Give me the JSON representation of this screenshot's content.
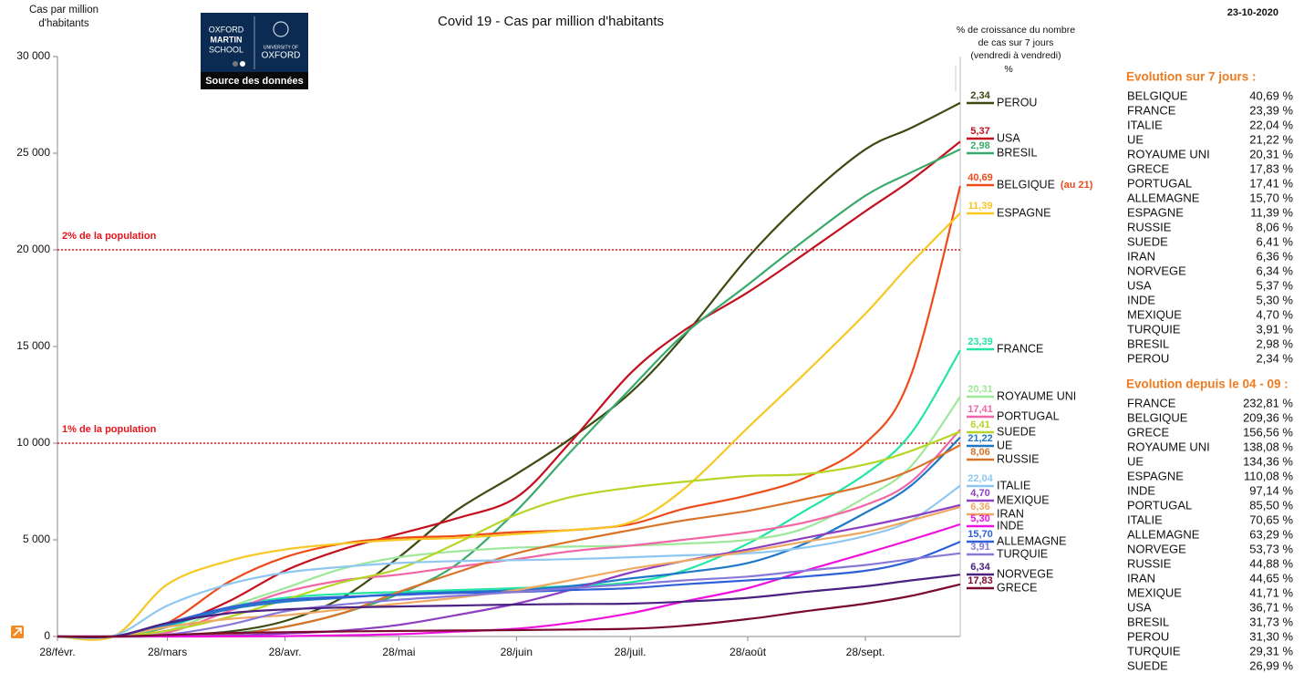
{
  "chart_data": {
    "type": "line",
    "title": "Covid 19 - Cas par million d'habitants",
    "date": "23-10-2020",
    "ylabel": [
      "Cas par million",
      "d'habitants"
    ],
    "growth_header": [
      "% de croissance du nombre",
      "de cas sur 7 jours",
      "(vendredi à vendredi)",
      "%"
    ],
    "logo": {
      "left": [
        "OXFORD",
        "MARTIN",
        "SCHOOL"
      ],
      "right": [
        "UNIVERSITY OF",
        "OXFORD"
      ],
      "link": "Source des données"
    },
    "x": [
      0,
      15,
      29,
      45,
      60,
      75,
      90,
      105,
      121,
      135,
      151,
      165,
      182,
      197,
      213,
      225,
      238
    ],
    "xlim": [
      0,
      238
    ],
    "xticks": [
      {
        "value": 0,
        "label": "28/févr."
      },
      {
        "value": 29,
        "label": "28/mars"
      },
      {
        "value": 60,
        "label": "28/avr."
      },
      {
        "value": 90,
        "label": "28/mai"
      },
      {
        "value": 121,
        "label": "28/juin"
      },
      {
        "value": 151,
        "label": "28/juil."
      },
      {
        "value": 182,
        "label": "28/août"
      },
      {
        "value": 213,
        "label": "28/sept."
      }
    ],
    "ylim": [
      0,
      30000
    ],
    "yticks": [
      0,
      {
        "value": 5000,
        "label": "5 000"
      },
      {
        "value": 10000,
        "label": "10 000"
      },
      {
        "value": 15000,
        "label": "15 000"
      },
      {
        "value": 20000,
        "label": "20 000"
      },
      {
        "value": 25000,
        "label": "25 000"
      },
      {
        "value": 30000,
        "label": "30 000"
      }
    ],
    "reference_lines": [
      {
        "value": 20000,
        "label": "2% de la population",
        "color": "#e8141c"
      },
      {
        "value": 10000,
        "label": "1% de la population",
        "color": "#e8141c"
      }
    ],
    "series": [
      {
        "name": "PEROU",
        "color": "#3d4a12",
        "growth_label": "2,34",
        "values": [
          0,
          10,
          80,
          250,
          800,
          2000,
          4100,
          6500,
          8400,
          10200,
          12600,
          15500,
          19600,
          22600,
          25200,
          26300,
          27600
        ]
      },
      {
        "name": "USA",
        "color": "#c4101e",
        "growth_label": "5,37",
        "values": [
          0,
          20,
          500,
          1800,
          3400,
          4500,
          5300,
          6100,
          7200,
          10000,
          13600,
          15800,
          17800,
          19800,
          22000,
          23600,
          25600
        ]
      },
      {
        "name": "BRESIL",
        "color": "#3aaa6c",
        "growth_label": "2,98",
        "values": [
          0,
          0,
          20,
          150,
          500,
          1200,
          2200,
          3700,
          6500,
          9500,
          12800,
          15600,
          18200,
          20500,
          22800,
          24000,
          25200
        ]
      },
      {
        "name": "BELGIQUE",
        "color": "#ee4b1a",
        "growth_label": "40,69",
        "note": "(au 21)",
        "values": [
          0,
          10,
          700,
          2800,
          4100,
          4800,
          5100,
          5200,
          5400,
          5500,
          5800,
          6600,
          7300,
          8200,
          10000,
          13500,
          23300
        ]
      },
      {
        "name": "ESPAGNE",
        "color": "#f7c824",
        "growth_label": "11,39",
        "values": [
          0,
          30,
          2700,
          3900,
          4500,
          4800,
          5000,
          5100,
          5300,
          5500,
          5900,
          7600,
          10800,
          13600,
          16700,
          19300,
          21900
        ]
      },
      {
        "name": "FRANCE",
        "color": "#22e6a4",
        "growth_label": "23,39",
        "values": [
          0,
          5,
          500,
          1500,
          2000,
          2200,
          2300,
          2400,
          2500,
          2600,
          2800,
          3400,
          4800,
          6500,
          8400,
          10500,
          14800
        ]
      },
      {
        "name": "ROYAUME UNI",
        "color": "#9ee89a",
        "growth_label": "20,31",
        "values": [
          0,
          5,
          300,
          1500,
          2500,
          3500,
          4100,
          4400,
          4600,
          4650,
          4700,
          4800,
          5000,
          5600,
          7200,
          8800,
          12400
        ]
      },
      {
        "name": "PORTUGAL",
        "color": "#f066a6",
        "growth_label": "17,41",
        "values": [
          0,
          0,
          200,
          1300,
          2300,
          2900,
          3200,
          3600,
          4000,
          4400,
          4700,
          5000,
          5400,
          5900,
          6800,
          8000,
          10700
        ]
      },
      {
        "name": "SUEDE",
        "color": "#b5d624",
        "growth_label": "6,41",
        "values": [
          0,
          0,
          300,
          1000,
          1900,
          2800,
          3500,
          4800,
          6300,
          7200,
          7700,
          8000,
          8300,
          8400,
          8900,
          9600,
          10600
        ]
      },
      {
        "name": "UE",
        "color": "#1e78c8",
        "growth_label": "21,22",
        "values": [
          0,
          10,
          600,
          1400,
          1800,
          2000,
          2200,
          2300,
          2400,
          2600,
          3000,
          3300,
          3800,
          4800,
          6400,
          7800,
          10300
        ]
      },
      {
        "name": "RUSSIE",
        "color": "#d9732a",
        "growth_label": "8,06",
        "values": [
          0,
          0,
          20,
          100,
          500,
          1200,
          2300,
          3300,
          4300,
          4900,
          5500,
          6000,
          6500,
          7100,
          7800,
          8600,
          9900
        ]
      },
      {
        "name": "ITALIE",
        "color": "#8ec8f0",
        "growth_label": "22,04",
        "values": [
          0,
          50,
          1600,
          2700,
          3300,
          3600,
          3800,
          3900,
          3950,
          4000,
          4100,
          4200,
          4300,
          4600,
          5200,
          6000,
          7800
        ]
      },
      {
        "name": "MEXIQUE",
        "color": "#8e3ec0",
        "growth_label": "4,70",
        "values": [
          0,
          0,
          10,
          50,
          150,
          300,
          600,
          1100,
          1700,
          2400,
          3300,
          3900,
          4500,
          5100,
          5700,
          6200,
          6800
        ]
      },
      {
        "name": "IRAN",
        "color": "#f0a860",
        "growth_label": "6,36",
        "values": [
          0,
          5,
          500,
          900,
          1100,
          1400,
          1700,
          2000,
          2400,
          2900,
          3500,
          3900,
          4400,
          4900,
          5400,
          6000,
          6700
        ]
      },
      {
        "name": "INDE",
        "color": "#f010e0",
        "growth_label": "5,30",
        "values": [
          0,
          0,
          0,
          5,
          20,
          60,
          120,
          250,
          400,
          700,
          1200,
          1800,
          2500,
          3400,
          4300,
          5000,
          5800
        ]
      },
      {
        "name": "ALLEMAGNE",
        "color": "#3060d8",
        "growth_label": "15,70",
        "values": [
          0,
          10,
          700,
          1500,
          1900,
          2050,
          2150,
          2250,
          2300,
          2400,
          2500,
          2700,
          2900,
          3100,
          3400,
          3900,
          4900
        ]
      },
      {
        "name": "TURQUIE",
        "color": "#8878d8",
        "growth_label": "3,91",
        "values": [
          0,
          0,
          100,
          600,
          1300,
          1650,
          1900,
          2100,
          2300,
          2500,
          2700,
          2900,
          3100,
          3400,
          3700,
          4000,
          4300
        ]
      },
      {
        "name": "NORVEGE",
        "color": "#4a2080",
        "growth_label": "6,34",
        "values": [
          0,
          10,
          700,
          1200,
          1400,
          1500,
          1550,
          1600,
          1650,
          1680,
          1700,
          1800,
          2000,
          2300,
          2600,
          2900,
          3200
        ]
      },
      {
        "name": "GRECE",
        "color": "#7a0a30",
        "growth_label": "17,83",
        "values": [
          0,
          0,
          80,
          180,
          220,
          260,
          290,
          310,
          330,
          360,
          400,
          550,
          900,
          1300,
          1700,
          2100,
          2700
        ]
      }
    ]
  },
  "tables": [
    {
      "title": "Evolution sur 7 jours :",
      "rows": [
        [
          "BELGIQUE",
          "40,69 %"
        ],
        [
          "FRANCE",
          "23,39 %"
        ],
        [
          "ITALIE",
          "22,04 %"
        ],
        [
          "UE",
          "21,22 %"
        ],
        [
          "ROYAUME UNI",
          "20,31 %"
        ],
        [
          "GRECE",
          "17,83 %"
        ],
        [
          "PORTUGAL",
          "17,41 %"
        ],
        [
          "ALLEMAGNE",
          "15,70 %"
        ],
        [
          "ESPAGNE",
          "11,39 %"
        ],
        [
          "RUSSIE",
          "8,06 %"
        ],
        [
          "SUEDE",
          "6,41 %"
        ],
        [
          "IRAN",
          "6,36 %"
        ],
        [
          "NORVEGE",
          "6,34 %"
        ],
        [
          "USA",
          "5,37 %"
        ],
        [
          "INDE",
          "5,30 %"
        ],
        [
          "MEXIQUE",
          "4,70 %"
        ],
        [
          "TURQUIE",
          "3,91 %"
        ],
        [
          "BRESIL",
          "2,98 %"
        ],
        [
          "PEROU",
          "2,34 %"
        ]
      ]
    },
    {
      "title": "Evolution depuis le 04 - 09 :",
      "rows": [
        [
          "FRANCE",
          "232,81 %"
        ],
        [
          "BELGIQUE",
          "209,36 %"
        ],
        [
          "GRECE",
          "156,56 %"
        ],
        [
          "ROYAUME UNI",
          "138,08 %"
        ],
        [
          "UE",
          "134,36 %"
        ],
        [
          "ESPAGNE",
          "110,08 %"
        ],
        [
          "INDE",
          "97,14 %"
        ],
        [
          "PORTUGAL",
          "85,50 %"
        ],
        [
          "ITALIE",
          "70,65 %"
        ],
        [
          "ALLEMAGNE",
          "63,29 %"
        ],
        [
          "NORVEGE",
          "53,73 %"
        ],
        [
          "RUSSIE",
          "44,88 %"
        ],
        [
          "IRAN",
          "44,65 %"
        ],
        [
          "MEXIQUE",
          "41,71 %"
        ],
        [
          "USA",
          "36,71 %"
        ],
        [
          "BRESIL",
          "31,73 %"
        ],
        [
          "PEROU",
          "31,30 %"
        ],
        [
          "TURQUIE",
          "29,31 %"
        ],
        [
          "SUEDE",
          "26,99 %"
        ]
      ]
    }
  ]
}
